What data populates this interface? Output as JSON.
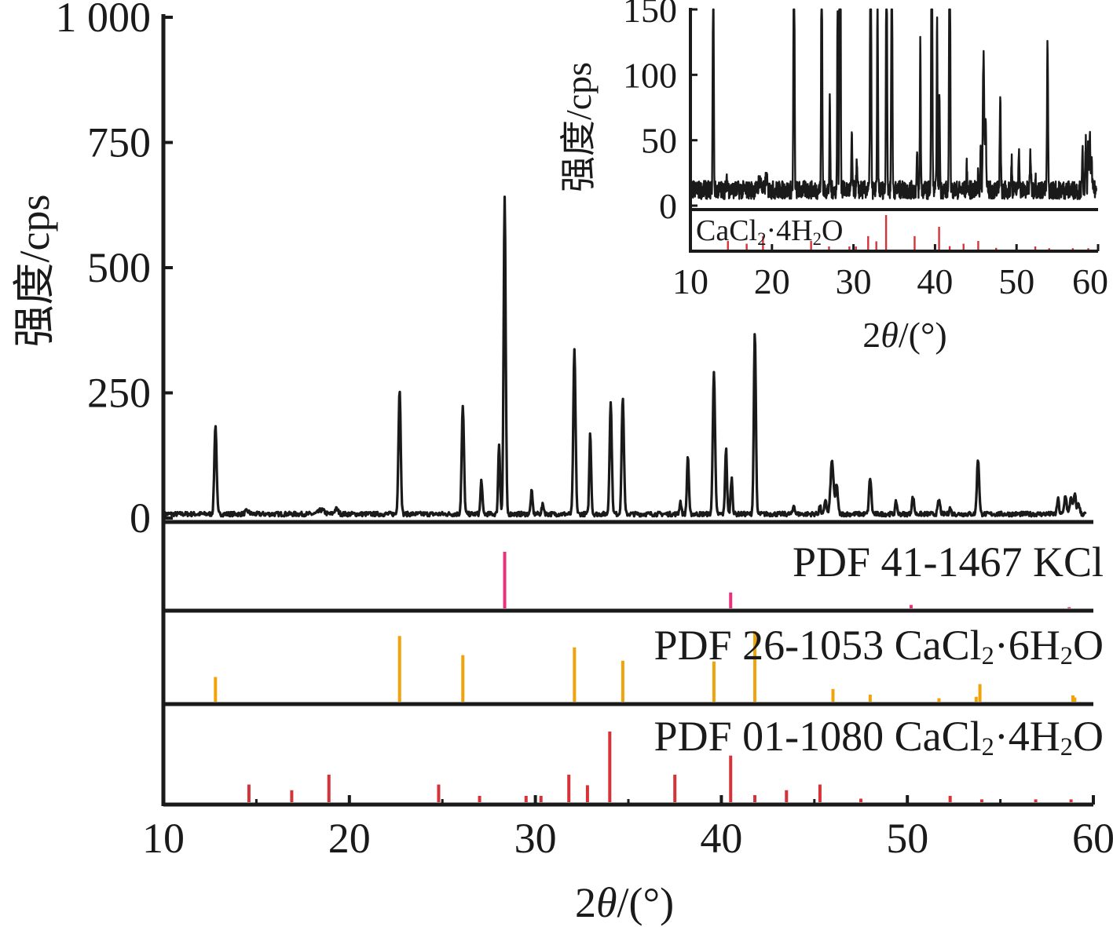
{
  "chart_data": {
    "type": "line",
    "main": {
      "xlabel_parts": [
        "2",
        "θ",
        "/(°)"
      ],
      "ylabel": "强度/cps",
      "xlim": [
        10,
        60
      ],
      "ylim": [
        0,
        1000
      ],
      "x_ticks": [
        10,
        20,
        30,
        40,
        50,
        60
      ],
      "y_ticks": [
        {
          "value": 0,
          "label": "0"
        },
        {
          "value": 250,
          "label": "250"
        },
        {
          "value": 500,
          "label": "500"
        },
        {
          "value": 750,
          "label": "750"
        },
        {
          "value": 1000,
          "label": "1 000"
        }
      ],
      "baseline": 8,
      "series_color": "#1a1a1a",
      "peaks": [
        {
          "x": 12.8,
          "y": 178,
          "w": 0.06
        },
        {
          "x": 14.5,
          "y": 6,
          "w": 0.1
        },
        {
          "x": 18.5,
          "y": 8,
          "w": 0.15
        },
        {
          "x": 19.3,
          "y": 10,
          "w": 0.1
        },
        {
          "x": 22.7,
          "y": 250,
          "w": 0.06
        },
        {
          "x": 26.1,
          "y": 213,
          "w": 0.06
        },
        {
          "x": 27.1,
          "y": 68,
          "w": 0.05
        },
        {
          "x": 28.05,
          "y": 140,
          "w": 0.05
        },
        {
          "x": 28.35,
          "y": 630,
          "w": 0.055
        },
        {
          "x": 29.8,
          "y": 45,
          "w": 0.05
        },
        {
          "x": 30.4,
          "y": 18,
          "w": 0.06
        },
        {
          "x": 32.1,
          "y": 327,
          "w": 0.06
        },
        {
          "x": 32.95,
          "y": 162,
          "w": 0.05
        },
        {
          "x": 34.05,
          "y": 222,
          "w": 0.06
        },
        {
          "x": 34.7,
          "y": 233,
          "w": 0.06
        },
        {
          "x": 37.8,
          "y": 25,
          "w": 0.05
        },
        {
          "x": 38.2,
          "y": 117,
          "w": 0.05
        },
        {
          "x": 39.6,
          "y": 287,
          "w": 0.06
        },
        {
          "x": 40.25,
          "y": 130,
          "w": 0.05
        },
        {
          "x": 40.55,
          "y": 72,
          "w": 0.05
        },
        {
          "x": 41.8,
          "y": 365,
          "w": 0.055
        },
        {
          "x": 43.9,
          "y": 18,
          "w": 0.05
        },
        {
          "x": 45.3,
          "y": 15,
          "w": 0.05
        },
        {
          "x": 45.6,
          "y": 30,
          "w": 0.05
        },
        {
          "x": 45.95,
          "y": 106,
          "w": 0.08
        },
        {
          "x": 46.2,
          "y": 60,
          "w": 0.06
        },
        {
          "x": 48.0,
          "y": 72,
          "w": 0.06
        },
        {
          "x": 49.4,
          "y": 25,
          "w": 0.05
        },
        {
          "x": 50.3,
          "y": 33,
          "w": 0.06
        },
        {
          "x": 51.7,
          "y": 28,
          "w": 0.06
        },
        {
          "x": 52.3,
          "y": 12,
          "w": 0.05
        },
        {
          "x": 53.8,
          "y": 110,
          "w": 0.06
        },
        {
          "x": 58.1,
          "y": 30,
          "w": 0.05
        },
        {
          "x": 58.5,
          "y": 38,
          "w": 0.06
        },
        {
          "x": 58.8,
          "y": 35,
          "w": 0.06
        },
        {
          "x": 59.0,
          "y": 38,
          "w": 0.06
        },
        {
          "x": 59.2,
          "y": 22,
          "w": 0.06
        }
      ]
    },
    "references": [
      {
        "name_parts": [
          "PDF 41-1467 KCl"
        ],
        "color": "#e8327c",
        "sticks": [
          {
            "x": 28.35,
            "intensity": 100
          },
          {
            "x": 40.5,
            "intensity": 28
          },
          {
            "x": 50.2,
            "intensity": 6
          },
          {
            "x": 58.7,
            "intensity": 2
          }
        ]
      },
      {
        "name_parts": [
          "PDF 26-1053 CaCl",
          "2",
          "·6H",
          "2",
          "O"
        ],
        "color": "#f0a30a",
        "sticks": [
          {
            "x": 12.8,
            "intensity": 35
          },
          {
            "x": 22.7,
            "intensity": 93
          },
          {
            "x": 26.1,
            "intensity": 66
          },
          {
            "x": 32.1,
            "intensity": 77
          },
          {
            "x": 34.7,
            "intensity": 58
          },
          {
            "x": 39.6,
            "intensity": 57
          },
          {
            "x": 41.8,
            "intensity": 100
          },
          {
            "x": 46.0,
            "intensity": 18
          },
          {
            "x": 48.0,
            "intensity": 10
          },
          {
            "x": 51.7,
            "intensity": 5
          },
          {
            "x": 53.7,
            "intensity": 7
          },
          {
            "x": 53.9,
            "intensity": 25
          },
          {
            "x": 58.9,
            "intensity": 9
          },
          {
            "x": 59.0,
            "intensity": 6
          }
        ]
      },
      {
        "name_parts": [
          "PDF 01-1080 CaCl",
          "2",
          "·4H",
          "2",
          "O"
        ],
        "color": "#d4333a",
        "sticks": [
          {
            "x": 14.6,
            "intensity": 25
          },
          {
            "x": 16.9,
            "intensity": 17
          },
          {
            "x": 18.9,
            "intensity": 39
          },
          {
            "x": 24.8,
            "intensity": 25
          },
          {
            "x": 27.0,
            "intensity": 9
          },
          {
            "x": 29.5,
            "intensity": 9
          },
          {
            "x": 30.3,
            "intensity": 9
          },
          {
            "x": 31.8,
            "intensity": 39
          },
          {
            "x": 32.8,
            "intensity": 24
          },
          {
            "x": 34.0,
            "intensity": 100
          },
          {
            "x": 37.5,
            "intensity": 39
          },
          {
            "x": 40.5,
            "intensity": 66
          },
          {
            "x": 41.8,
            "intensity": 10
          },
          {
            "x": 43.5,
            "intensity": 17
          },
          {
            "x": 45.3,
            "intensity": 25
          },
          {
            "x": 47.5,
            "intensity": 5
          },
          {
            "x": 52.3,
            "intensity": 9
          },
          {
            "x": 54.0,
            "intensity": 4
          },
          {
            "x": 56.9,
            "intensity": 4
          },
          {
            "x": 58.8,
            "intensity": 4
          }
        ]
      }
    ],
    "inset": {
      "xlabel_parts": [
        "2",
        "θ",
        "/(°)"
      ],
      "ylabel": "强度/cps",
      "xlim": [
        10,
        60
      ],
      "ylim": [
        0,
        150
      ],
      "x_ticks": [
        10,
        20,
        30,
        40,
        50,
        60
      ],
      "y_ticks": [
        0,
        50,
        100,
        150
      ],
      "reference_name_parts": [
        "CaCl",
        "2",
        "·4H",
        "2",
        "O"
      ],
      "reference_color": "#d4333a"
    }
  }
}
